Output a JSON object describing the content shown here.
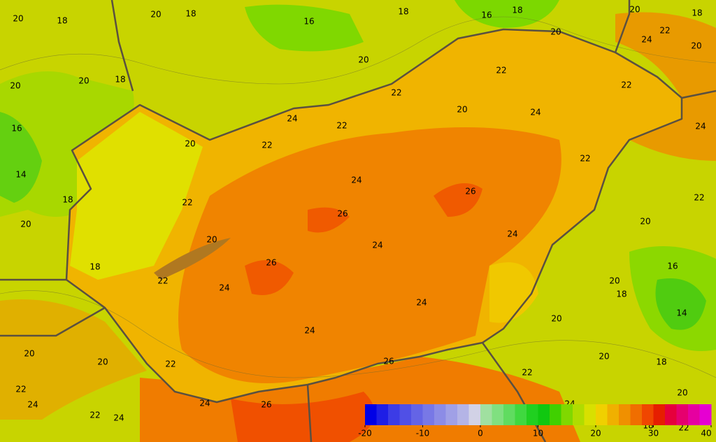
{
  "map": {
    "contour_labels": [
      "20",
      "18",
      "20",
      "18",
      "16",
      "18",
      "16",
      "18",
      "20",
      "18",
      "22",
      "24",
      "20",
      "20",
      "20",
      "20",
      "18",
      "20",
      "22",
      "22",
      "22",
      "20",
      "24",
      "24",
      "22",
      "16",
      "24",
      "20",
      "22",
      "22",
      "14",
      "24",
      "26",
      "18",
      "22",
      "22",
      "26",
      "20",
      "20",
      "20",
      "24",
      "24",
      "16",
      "18",
      "26",
      "22",
      "24",
      "20",
      "18",
      "24",
      "14",
      "20",
      "24",
      "20",
      "20",
      "26",
      "20",
      "18",
      "22",
      "22",
      "22",
      "20",
      "24",
      "24",
      "26",
      "24",
      "22",
      "24",
      "18",
      "22"
    ],
    "colorbar": {
      "range": [
        -20,
        40
      ],
      "ticks": [
        -20,
        -10,
        0,
        10,
        20,
        30,
        40
      ],
      "colors": [
        "#0000e6",
        "#1e1ee6",
        "#3c3ce6",
        "#5050e6",
        "#6464e6",
        "#7878e6",
        "#8c8ce6",
        "#a0a0e6",
        "#b4b4e6",
        "#d2d2e6",
        "#a0e0a0",
        "#80e080",
        "#60dc60",
        "#40d840",
        "#20d020",
        "#10c810",
        "#40d000",
        "#80d800",
        "#b0dc00",
        "#d8e000",
        "#f0d000",
        "#f0b000",
        "#f09000",
        "#f06e00",
        "#f04600",
        "#e61e00",
        "#e6003c",
        "#e6006e",
        "#e600a0",
        "#e600d2"
      ]
    }
  }
}
